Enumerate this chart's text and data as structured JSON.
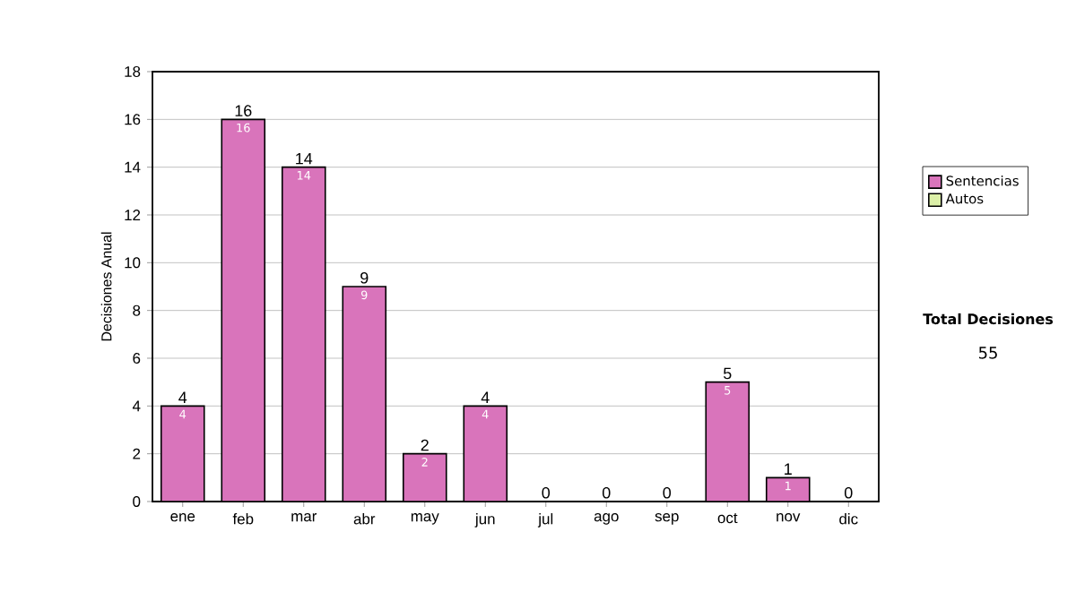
{
  "chart_data": {
    "type": "bar",
    "stacked": true,
    "ylabel": "Decisiones Anual",
    "categories": [
      "ene",
      "feb",
      "mar",
      "abr",
      "may",
      "jun",
      "jul",
      "ago",
      "sep",
      "oct",
      "nov",
      "dic"
    ],
    "series": [
      {
        "name": "Sentencias",
        "color": "#d974bb",
        "values": [
          4,
          16,
          14,
          9,
          2,
          4,
          0,
          0,
          0,
          5,
          1,
          0
        ],
        "value_labels": [
          "4",
          "16",
          "14",
          "9",
          "2",
          "4",
          null,
          null,
          null,
          "5",
          "1",
          null
        ]
      },
      {
        "name": "Autos",
        "color": "#dcf0a8",
        "values": [
          0,
          0,
          0,
          0,
          0,
          0,
          0,
          0,
          0,
          0,
          0,
          0
        ]
      }
    ],
    "totals": [
      "4",
      "16",
      "14",
      "9",
      "2",
      "4",
      "0",
      "0",
      "0",
      "5",
      "1",
      "0"
    ],
    "ylim": [
      0,
      18
    ],
    "yticks": [
      0,
      2,
      4,
      6,
      8,
      10,
      12,
      14,
      16,
      18
    ],
    "grid": "y",
    "legend": "right",
    "annotations": [
      "Total Decisiones",
      "55"
    ]
  }
}
